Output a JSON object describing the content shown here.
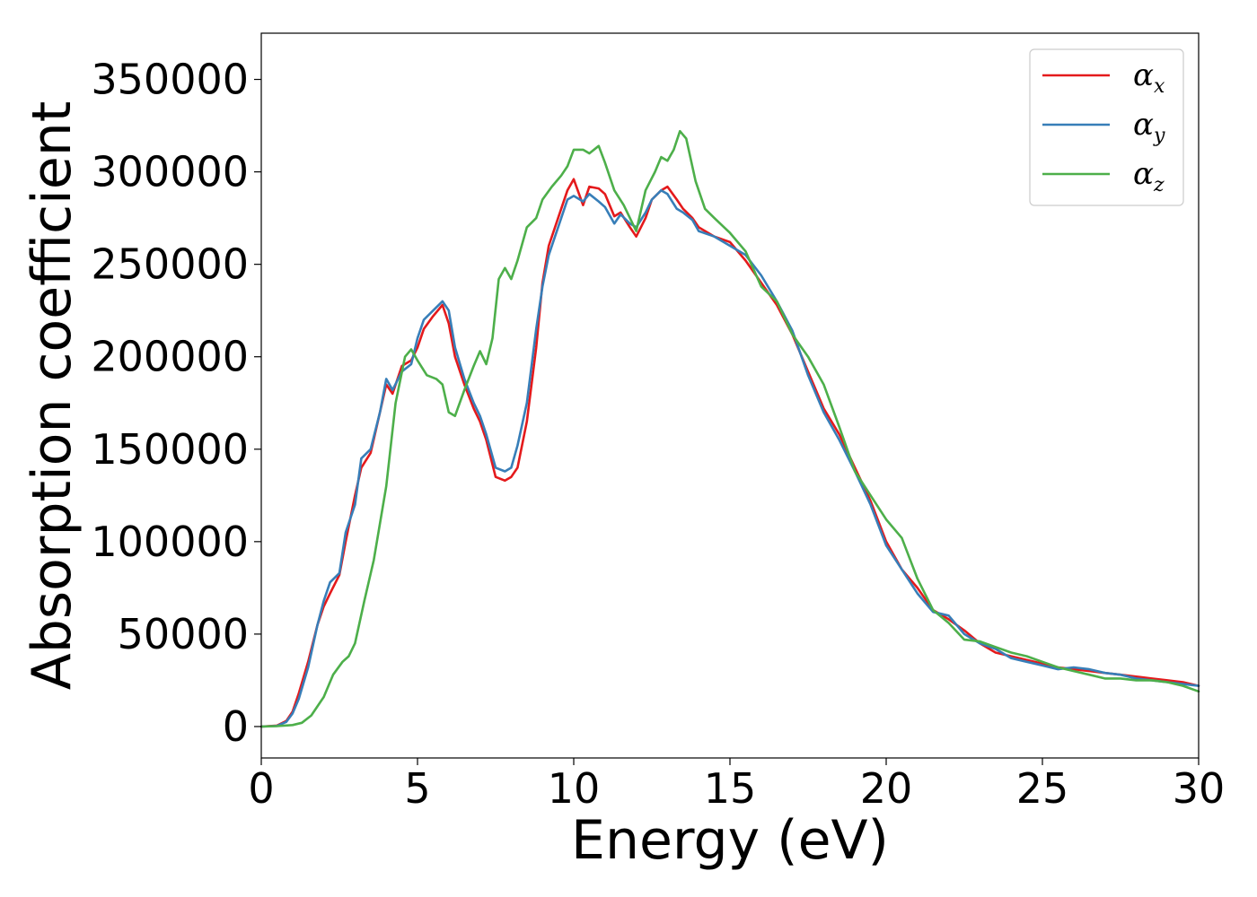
{
  "chart_data": {
    "type": "line",
    "xlabel": "Energy (eV)",
    "ylabel": "Absorption coefficient",
    "xlim": [
      0,
      30
    ],
    "ylim": [
      -17000,
      375000
    ],
    "xticks": [
      0,
      5,
      10,
      15,
      20,
      25,
      30
    ],
    "yticks": [
      0,
      50000,
      100000,
      150000,
      200000,
      250000,
      300000,
      350000
    ],
    "legend_position": "top-right",
    "grid": false,
    "series": [
      {
        "name": "αx",
        "symbol": "α",
        "subscript": "x",
        "color": "#e41a1c",
        "x": [
          0,
          0.5,
          0.8,
          1.0,
          1.2,
          1.5,
          1.8,
          2.0,
          2.2,
          2.5,
          2.7,
          3.0,
          3.2,
          3.5,
          3.8,
          4.0,
          4.2,
          4.5,
          4.8,
          5.0,
          5.2,
          5.5,
          5.8,
          6.0,
          6.2,
          6.5,
          6.8,
          7.0,
          7.2,
          7.5,
          7.8,
          8.0,
          8.2,
          8.5,
          8.8,
          9.0,
          9.2,
          9.5,
          9.8,
          10.0,
          10.3,
          10.5,
          10.8,
          11.0,
          11.3,
          11.5,
          11.8,
          12.0,
          12.3,
          12.5,
          12.8,
          13.0,
          13.3,
          13.5,
          13.8,
          14.0,
          14.5,
          15.0,
          15.5,
          16.0,
          16.5,
          17.0,
          17.5,
          18.0,
          18.5,
          19.0,
          19.5,
          20.0,
          20.5,
          21.0,
          21.5,
          22.0,
          22.5,
          23.0,
          23.5,
          24.0,
          24.5,
          25.0,
          25.5,
          26.0,
          26.5,
          27.0,
          27.5,
          28.0,
          28.5,
          29.0,
          29.5,
          30.0
        ],
        "y": [
          0,
          500,
          3000,
          8000,
          18000,
          35000,
          55000,
          65000,
          72000,
          82000,
          100000,
          125000,
          140000,
          148000,
          170000,
          185000,
          180000,
          195000,
          198000,
          205000,
          215000,
          222000,
          228000,
          218000,
          200000,
          185000,
          172000,
          165000,
          155000,
          135000,
          133000,
          135000,
          140000,
          165000,
          205000,
          240000,
          260000,
          275000,
          290000,
          296000,
          282000,
          292000,
          291000,
          288000,
          276000,
          278000,
          270000,
          265000,
          275000,
          285000,
          290000,
          292000,
          285000,
          280000,
          275000,
          270000,
          265000,
          262000,
          252000,
          240000,
          228000,
          212000,
          192000,
          172000,
          158000,
          140000,
          122000,
          100000,
          85000,
          75000,
          63000,
          58000,
          52000,
          45000,
          40000,
          38000,
          36000,
          34000,
          32000,
          31000,
          30000,
          29000,
          28000,
          27000,
          26000,
          25000,
          24000,
          22000
        ]
      },
      {
        "name": "αy",
        "symbol": "α",
        "subscript": "y",
        "color": "#377eb8",
        "x": [
          0,
          0.5,
          0.8,
          1.0,
          1.2,
          1.5,
          1.8,
          2.0,
          2.2,
          2.5,
          2.7,
          3.0,
          3.2,
          3.5,
          3.8,
          4.0,
          4.2,
          4.5,
          4.8,
          5.0,
          5.2,
          5.5,
          5.8,
          6.0,
          6.2,
          6.5,
          6.8,
          7.0,
          7.2,
          7.5,
          7.8,
          8.0,
          8.2,
          8.5,
          8.8,
          9.0,
          9.2,
          9.5,
          9.8,
          10.0,
          10.3,
          10.5,
          10.8,
          11.0,
          11.3,
          11.5,
          11.8,
          12.0,
          12.3,
          12.5,
          12.8,
          13.0,
          13.3,
          13.5,
          13.8,
          14.0,
          14.5,
          15.0,
          15.5,
          16.0,
          16.5,
          17.0,
          17.5,
          18.0,
          18.5,
          19.0,
          19.5,
          20.0,
          20.5,
          21.0,
          21.5,
          22.0,
          22.5,
          23.0,
          23.5,
          24.0,
          24.5,
          25.0,
          25.5,
          26.0,
          26.5,
          27.0,
          27.5,
          28.0,
          28.5,
          29.0,
          29.5,
          30.0
        ],
        "y": [
          0,
          300,
          2500,
          7000,
          15000,
          32000,
          55000,
          68000,
          78000,
          83000,
          105000,
          120000,
          145000,
          150000,
          170000,
          188000,
          182000,
          192000,
          196000,
          210000,
          220000,
          225000,
          230000,
          225000,
          205000,
          188000,
          175000,
          168000,
          158000,
          140000,
          138000,
          140000,
          152000,
          175000,
          215000,
          238000,
          255000,
          270000,
          285000,
          287000,
          284000,
          288000,
          284000,
          281000,
          272000,
          277000,
          272000,
          270000,
          278000,
          285000,
          290000,
          288000,
          280000,
          278000,
          274000,
          268000,
          265000,
          260000,
          255000,
          244000,
          230000,
          214000,
          190000,
          170000,
          155000,
          138000,
          120000,
          98000,
          85000,
          72000,
          62000,
          60000,
          50000,
          45000,
          42000,
          37000,
          35000,
          33000,
          31000,
          32000,
          31000,
          29000,
          28000,
          26000,
          25000,
          24000,
          23000,
          22000
        ]
      },
      {
        "name": "αz",
        "symbol": "α",
        "subscript": "z",
        "color": "#4daf4a",
        "x": [
          0,
          0.5,
          1.0,
          1.3,
          1.6,
          2.0,
          2.3,
          2.6,
          2.8,
          3.0,
          3.3,
          3.6,
          4.0,
          4.3,
          4.6,
          4.8,
          5.0,
          5.3,
          5.6,
          5.8,
          6.0,
          6.2,
          6.5,
          6.8,
          7.0,
          7.2,
          7.4,
          7.6,
          7.8,
          8.0,
          8.2,
          8.5,
          8.8,
          9.0,
          9.3,
          9.6,
          9.8,
          10.0,
          10.3,
          10.5,
          10.8,
          11.0,
          11.3,
          11.6,
          12.0,
          12.3,
          12.6,
          12.8,
          13.0,
          13.2,
          13.4,
          13.6,
          13.9,
          14.2,
          14.5,
          15.0,
          15.5,
          16.0,
          16.5,
          17.0,
          17.5,
          18.0,
          18.5,
          19.0,
          19.5,
          20.0,
          20.5,
          21.0,
          21.5,
          22.0,
          22.5,
          23.0,
          23.5,
          24.0,
          24.5,
          25.0,
          25.5,
          26.0,
          26.5,
          27.0,
          27.5,
          28.0,
          28.5,
          29.0,
          29.5,
          30.0
        ],
        "y": [
          0,
          200,
          800,
          2000,
          6000,
          16000,
          28000,
          35000,
          38000,
          45000,
          68000,
          90000,
          130000,
          175000,
          200000,
          204000,
          198000,
          190000,
          188000,
          185000,
          170000,
          168000,
          182000,
          195000,
          203000,
          196000,
          210000,
          242000,
          248000,
          242000,
          252000,
          270000,
          275000,
          285000,
          292000,
          298000,
          303000,
          312000,
          312000,
          310000,
          314000,
          305000,
          290000,
          282000,
          268000,
          290000,
          300000,
          308000,
          306000,
          312000,
          322000,
          318000,
          295000,
          280000,
          275000,
          267000,
          257000,
          238000,
          230000,
          212000,
          200000,
          185000,
          162000,
          138000,
          125000,
          112000,
          102000,
          80000,
          63000,
          56000,
          47000,
          46000,
          43000,
          40000,
          38000,
          35000,
          32000,
          30000,
          28000,
          26000,
          26000,
          25000,
          25000,
          24000,
          22000,
          19000
        ]
      }
    ]
  }
}
